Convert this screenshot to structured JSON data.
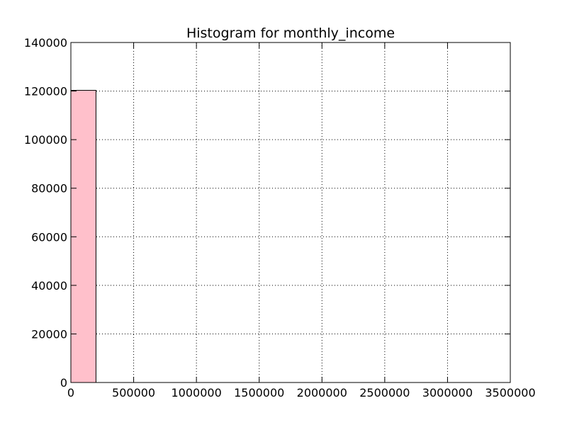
{
  "chart_data": {
    "type": "bar",
    "title": "Histogram for monthly_income",
    "xlabel": "",
    "ylabel": "",
    "xlim": [
      0,
      3500000
    ],
    "ylim": [
      0,
      140000
    ],
    "grid": true,
    "grid_style": "dotted",
    "x_ticks": [
      {
        "value": 0,
        "label": "0"
      },
      {
        "value": 500000,
        "label": "500000"
      },
      {
        "value": 1000000,
        "label": "1000000"
      },
      {
        "value": 1500000,
        "label": "1500000"
      },
      {
        "value": 2000000,
        "label": "2000000"
      },
      {
        "value": 2500000,
        "label": "2500000"
      },
      {
        "value": 3000000,
        "label": "3000000"
      },
      {
        "value": 3500000,
        "label": "3500000"
      }
    ],
    "y_ticks": [
      {
        "value": 0,
        "label": "0"
      },
      {
        "value": 20000,
        "label": "20000"
      },
      {
        "value": 40000,
        "label": "40000"
      },
      {
        "value": 60000,
        "label": "60000"
      },
      {
        "value": 80000,
        "label": "80000"
      },
      {
        "value": 100000,
        "label": "100000"
      },
      {
        "value": 120000,
        "label": "120000"
      },
      {
        "value": 140000,
        "label": "140000"
      }
    ],
    "bins": [
      {
        "start": 0,
        "end": 200000,
        "count": 120300
      }
    ],
    "bar_color": "#ffc0cb",
    "edge_color": "#000000"
  }
}
